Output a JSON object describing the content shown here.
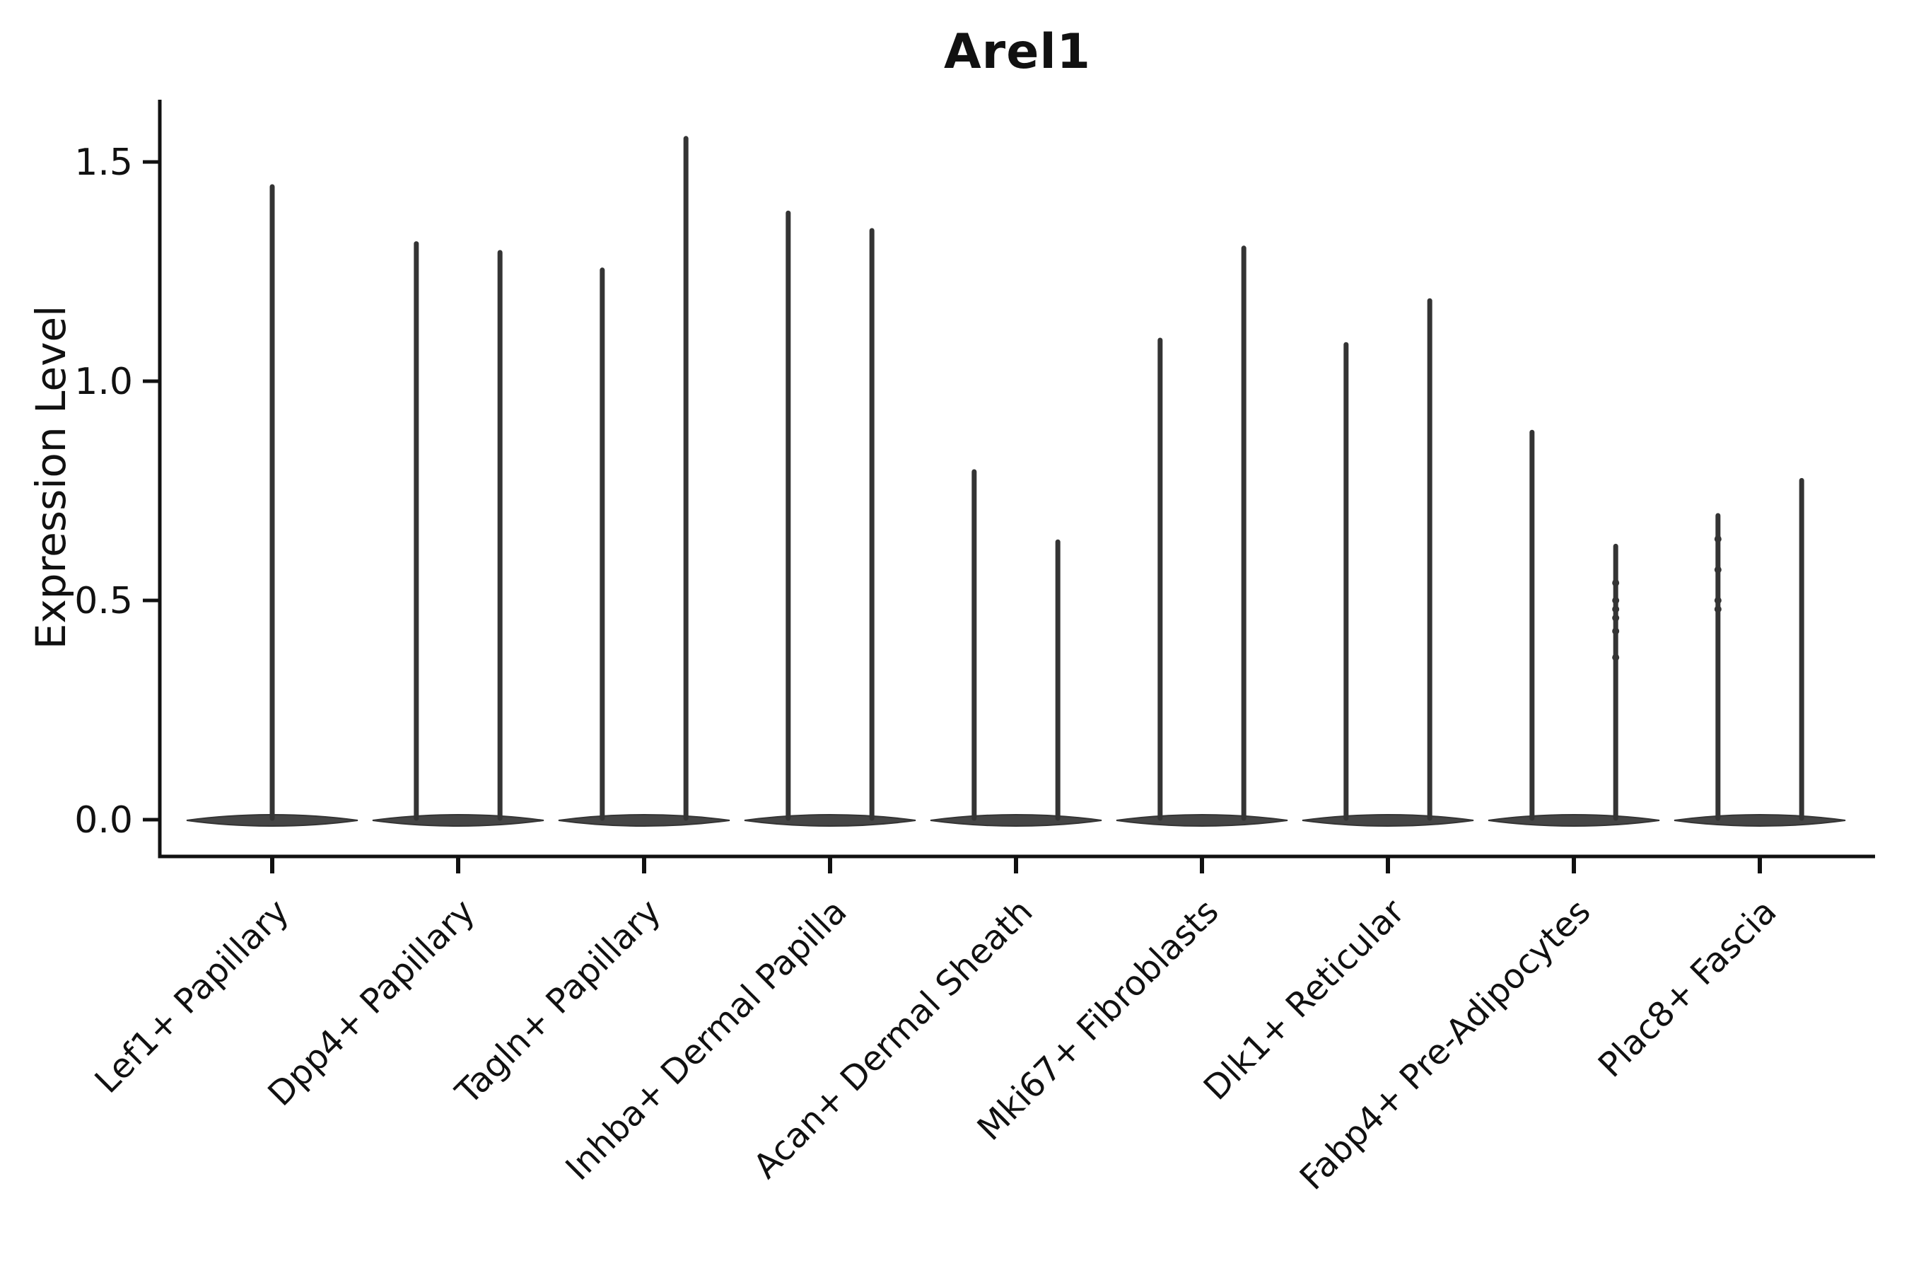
{
  "chart_data": {
    "type": "violin",
    "title": "Arel1",
    "ylabel": "Expression Level",
    "xlabel": "",
    "ylim": [
      -0.08,
      1.64
    ],
    "ytick_values": [
      0.0,
      0.5,
      1.0,
      1.5
    ],
    "ytick_labels": [
      "0.0",
      "0.5",
      "1.0",
      "1.5"
    ],
    "grid": false,
    "legend": "none",
    "x_tick_label_rotation_deg": 45,
    "colors": {
      "violin_stroke": "#343434",
      "violin_fill": "#454545",
      "axis": "#111111",
      "text": "#111111",
      "background": "#ffffff"
    },
    "categories": [
      "Lef1+ Papillary",
      "Dpp4+ Papillary",
      "Tagln+ Papillary",
      "Inhba+ Dermal Papilla",
      "Acan+ Dermal Sheath",
      "Mki67+ Fibroblasts",
      "Dlk1+ Reticular",
      "Fabp4+ Pre-Adipocytes",
      "Plac8+ Fascia"
    ],
    "series": [
      {
        "category": "Lef1+ Papillary",
        "violins": [
          {
            "pos": 0,
            "max_expression": 1.45,
            "points": []
          }
        ]
      },
      {
        "category": "Dpp4+ Papillary",
        "violins": [
          {
            "pos": -0.225,
            "max_expression": 1.32,
            "points": []
          },
          {
            "pos": 0.225,
            "max_expression": 1.3,
            "points": []
          }
        ]
      },
      {
        "category": "Tagln+ Papillary",
        "violins": [
          {
            "pos": -0.225,
            "max_expression": 1.26,
            "points": []
          },
          {
            "pos": 0.225,
            "max_expression": 1.56,
            "points": []
          }
        ]
      },
      {
        "category": "Inhba+ Dermal Papilla",
        "violins": [
          {
            "pos": -0.225,
            "max_expression": 1.39,
            "points": []
          },
          {
            "pos": 0.225,
            "max_expression": 1.35,
            "points": []
          }
        ]
      },
      {
        "category": "Acan+ Dermal Sheath",
        "violins": [
          {
            "pos": -0.225,
            "max_expression": 0.8,
            "points": []
          },
          {
            "pos": 0.225,
            "max_expression": 0.64,
            "points": []
          }
        ]
      },
      {
        "category": "Mki67+ Fibroblasts",
        "violins": [
          {
            "pos": -0.225,
            "max_expression": 1.1,
            "points": []
          },
          {
            "pos": 0.225,
            "max_expression": 1.31,
            "points": []
          }
        ]
      },
      {
        "category": "Dlk1+ Reticular",
        "violins": [
          {
            "pos": -0.225,
            "max_expression": 1.09,
            "points": []
          },
          {
            "pos": 0.225,
            "max_expression": 1.19,
            "points": []
          }
        ]
      },
      {
        "category": "Fabp4+ Pre-Adipocytes",
        "violins": [
          {
            "pos": -0.225,
            "max_expression": 0.89,
            "points": []
          },
          {
            "pos": 0.225,
            "max_expression": 0.63,
            "points": [
              0.54,
              0.5,
              0.48,
              0.46,
              0.43,
              0.37
            ]
          }
        ]
      },
      {
        "category": "Plac8+ Fascia",
        "violins": [
          {
            "pos": -0.225,
            "max_expression": 0.7,
            "points": [
              0.64,
              0.57,
              0.5,
              0.48
            ]
          },
          {
            "pos": 0.225,
            "max_expression": 0.78,
            "points": []
          }
        ]
      }
    ]
  }
}
